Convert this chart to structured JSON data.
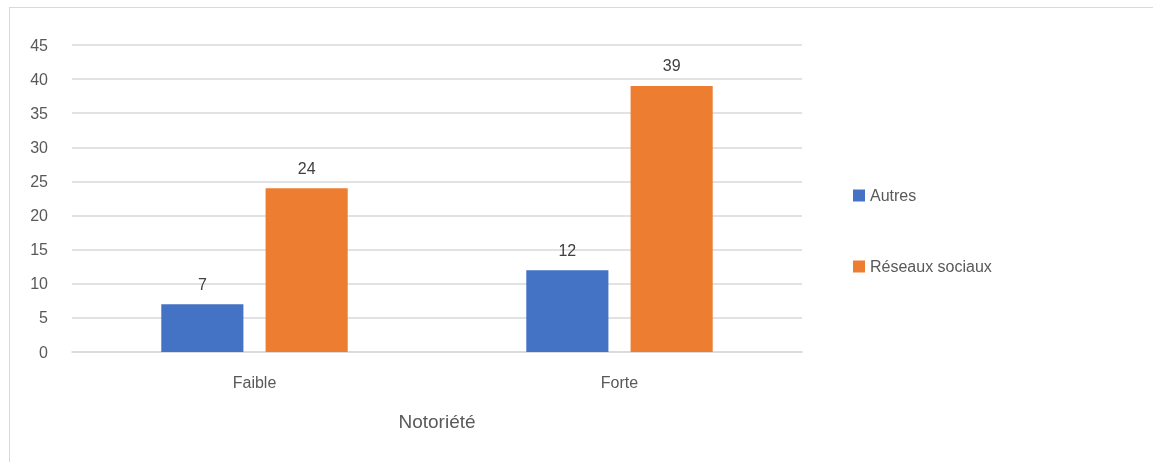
{
  "chart_data": {
    "type": "bar",
    "xlabel": "Notoriété",
    "categories": [
      "Faible",
      "Forte"
    ],
    "series": [
      {
        "name": "Autres",
        "color": "#4472c4",
        "values": [
          7,
          12
        ]
      },
      {
        "name": "Réseaux sociaux",
        "color": "#ed7d31",
        "values": [
          24,
          39
        ]
      }
    ],
    "ylim": [
      0,
      45
    ],
    "yticks": [
      0,
      5,
      10,
      15,
      20,
      25,
      30,
      35,
      40,
      45
    ],
    "grid": "y",
    "legend": "right",
    "data_labels": true
  }
}
